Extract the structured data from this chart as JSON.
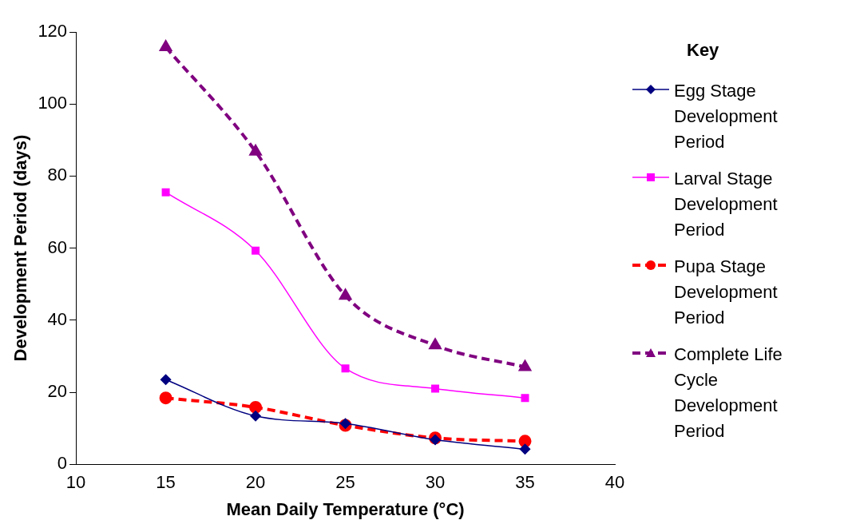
{
  "chart_data": {
    "type": "line",
    "legend_title": "Key",
    "xlabel": "Mean Daily Temperature (°C)",
    "ylabel": "Development Period (days)",
    "x": [
      15,
      20,
      25,
      30,
      35
    ],
    "series": [
      {
        "name": "Egg Stage Development Period",
        "color": "#000080",
        "values": [
          23.5,
          13.4,
          11.3,
          6.8,
          4.2
        ],
        "marker": "diamond",
        "line_style": "solid"
      },
      {
        "name": "Larval Stage Development Period",
        "color": "#ff00ff",
        "values": [
          75.5,
          59.3,
          26.6,
          21,
          18.4
        ],
        "marker": "square",
        "line_style": "solid"
      },
      {
        "name": "Pupa Stage Development Period",
        "color": "#ff0000",
        "values": [
          18.4,
          15.8,
          10.8,
          7.3,
          6.4
        ],
        "marker": "circle",
        "line_style": "dashed"
      },
      {
        "name": "Complete Life Cycle Development Period",
        "color": "#800080",
        "values": [
          115.8,
          86.8,
          46.8,
          33,
          27
        ],
        "marker": "triangle",
        "line_style": "dashed"
      }
    ],
    "xlim": [
      10,
      40
    ],
    "xticks": [
      10,
      15,
      20,
      25,
      30,
      35,
      40
    ],
    "ylim": [
      0,
      120
    ],
    "yticks": [
      0,
      20,
      40,
      60,
      80,
      100,
      120
    ],
    "grid": false,
    "legend": "right"
  }
}
